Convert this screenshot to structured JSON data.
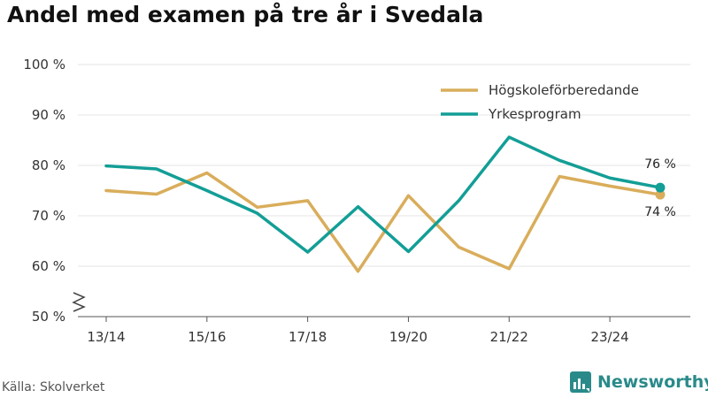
{
  "title": "Andel med examen på tre år i Svedala",
  "source": "Källa: Skolverket",
  "brand": {
    "name": "Newsworthy",
    "icon": "newsworthy-logo-icon",
    "color": "#2a8a8a"
  },
  "chart_data": {
    "type": "line",
    "title": "Andel med examen på tre år i Svedala",
    "categories": [
      "13/14",
      "14/15",
      "15/16",
      "16/17",
      "17/18",
      "18/19",
      "19/20",
      "20/21",
      "21/22",
      "22/23",
      "23/24",
      "24/25"
    ],
    "tick_labels": [
      "13/14",
      "15/16",
      "17/18",
      "19/20",
      "21/22",
      "23/24"
    ],
    "y_ticks": [
      "50 %",
      "60 %",
      "70 %",
      "80 %",
      "90 %",
      "100 %"
    ],
    "ylim": [
      50,
      100
    ],
    "y_break": true,
    "grid": true,
    "legend_position": "top-right",
    "series": [
      {
        "name": "Högskoleförberedande",
        "color": "#d9ad5b",
        "values": [
          75.0,
          74.3,
          78.5,
          71.7,
          73.0,
          59.0,
          74.0,
          63.8,
          59.5,
          77.8,
          75.9,
          74.2
        ],
        "end_label": "74 %"
      },
      {
        "name": "Yrkesprogram",
        "color": "#139e96",
        "values": [
          79.9,
          79.3,
          75.0,
          70.5,
          62.8,
          71.8,
          62.9,
          73.0,
          85.6,
          81.0,
          77.5,
          75.6
        ],
        "end_label": "76 %"
      }
    ]
  }
}
